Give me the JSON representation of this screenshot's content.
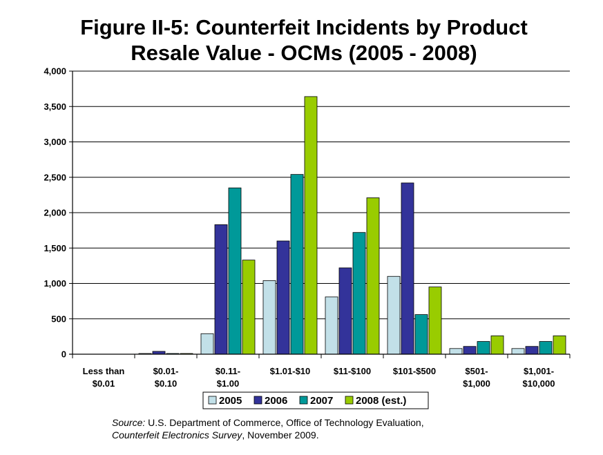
{
  "chart_data": {
    "type": "bar",
    "title": [
      "Figure II-5: Counterfeit Incidents by Product",
      "Resale Value - OCMs (2005 - 2008)"
    ],
    "xlabel": "",
    "ylabel": "",
    "ylim": [
      0,
      4000
    ],
    "yticks": [
      "0",
      "500",
      "1,000",
      "1,500",
      "2,000",
      "2,500",
      "3,000",
      "3,500",
      "4,000"
    ],
    "grid": true,
    "legend_position": "bottom",
    "categories": [
      [
        "Less than",
        "$0.01"
      ],
      [
        "$0.01-",
        "$0.10"
      ],
      [
        "$0.11-",
        "$1.00"
      ],
      [
        "$1.01-$10"
      ],
      [
        "$11-$100"
      ],
      [
        "$101-$500"
      ],
      [
        "$501-",
        "$1,000"
      ],
      [
        "$1,001-",
        "$10,000"
      ]
    ],
    "series": [
      {
        "name": "2005",
        "color": "#c2e0e8",
        "values": [
          0,
          10,
          290,
          1040,
          810,
          1100,
          80,
          80
        ]
      },
      {
        "name": "2006",
        "color": "#33339a",
        "values": [
          0,
          40,
          1830,
          1600,
          1220,
          2420,
          110,
          110
        ]
      },
      {
        "name": "2007",
        "color": "#009999",
        "values": [
          0,
          10,
          2350,
          2540,
          1720,
          560,
          180,
          180
        ]
      },
      {
        "name": "2008 (est.)",
        "color": "#99cc00",
        "values": [
          0,
          10,
          1330,
          3640,
          2210,
          950,
          260,
          260
        ]
      }
    ]
  },
  "source": {
    "label": "Source:",
    "line1_rest": " U.S. Department of Commerce, Office of Technology Evaluation,",
    "line2_italic": "Counterfeit Electronics Survey",
    "line2_rest": ", November 2009."
  }
}
